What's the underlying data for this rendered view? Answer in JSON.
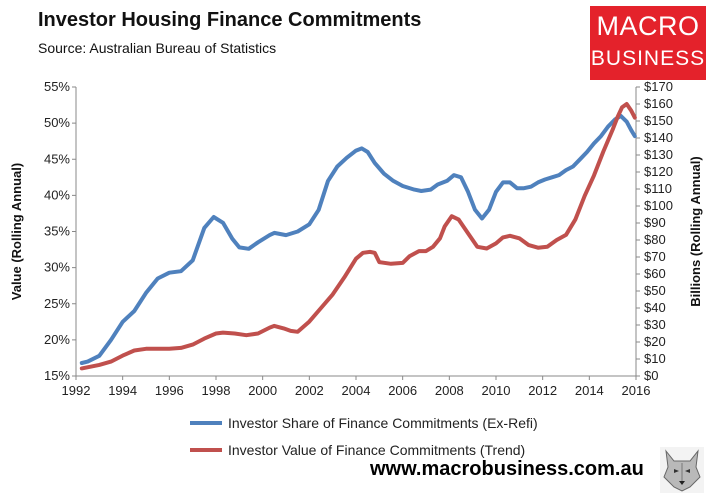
{
  "header": {
    "title": "Investor Housing Finance Commitments",
    "source": "Source: Australian Bureau of Statistics"
  },
  "logo": {
    "line1": "MACRO",
    "line2": "BUSINESS"
  },
  "footer": {
    "website": "www.macrobusiness.com.au"
  },
  "chart_data": {
    "type": "line",
    "title": "Investor Housing Finance Commitments",
    "xlabel": "",
    "ylabel": "Value (Rolling Annual)",
    "y2label": "Billions (Rolling Annual)",
    "xlim": [
      1992,
      2016
    ],
    "ylim": [
      15,
      55
    ],
    "y2lim": [
      0,
      170
    ],
    "x_ticks": [
      1992,
      1994,
      1996,
      1998,
      2000,
      2002,
      2004,
      2006,
      2008,
      2010,
      2012,
      2014,
      2016
    ],
    "x_tick_labels": [
      "1992",
      "1994",
      "1996",
      "1998",
      "2000",
      "2002",
      "2004",
      "2006",
      "2008",
      "2010",
      "2012",
      "2014",
      "2016"
    ],
    "y_ticks": [
      15,
      20,
      25,
      30,
      35,
      40,
      45,
      50,
      55
    ],
    "y_tick_labels": [
      "15%",
      "20%",
      "25%",
      "30%",
      "35%",
      "40%",
      "45%",
      "50%",
      "55%"
    ],
    "y2_ticks": [
      0,
      10,
      20,
      30,
      40,
      50,
      60,
      70,
      80,
      90,
      100,
      110,
      120,
      130,
      140,
      150,
      160,
      170
    ],
    "y2_tick_labels": [
      "$0",
      "$10",
      "$20",
      "$30",
      "$40",
      "$50",
      "$60",
      "$70",
      "$80",
      "$90",
      "$100",
      "$110",
      "$120",
      "$130",
      "$140",
      "$150",
      "$160",
      "$170"
    ],
    "grid": false,
    "legend_position": "bottom-center",
    "series": [
      {
        "name": "Investor Share of Finance Commitments (Ex-Refi)",
        "axis": "left",
        "color": "#4f81bd",
        "x": [
          1992.25,
          1992.5,
          1993.0,
          1993.5,
          1994.0,
          1994.5,
          1995.0,
          1995.5,
          1996.0,
          1996.5,
          1997.0,
          1997.5,
          1997.9,
          1998.3,
          1998.7,
          1999.0,
          1999.4,
          1999.8,
          2000.3,
          2000.5,
          2001.0,
          2001.5,
          2002.0,
          2002.4,
          2002.8,
          2003.2,
          2003.6,
          2004.0,
          2004.25,
          2004.5,
          2004.8,
          2005.2,
          2005.6,
          2006.0,
          2006.5,
          2006.8,
          2007.2,
          2007.5,
          2007.9,
          2008.2,
          2008.5,
          2008.8,
          2009.1,
          2009.4,
          2009.7,
          2010.0,
          2010.3,
          2010.6,
          2010.9,
          2011.2,
          2011.5,
          2011.8,
          2012.1,
          2012.4,
          2012.7,
          2013.0,
          2013.3,
          2013.6,
          2013.9,
          2014.2,
          2014.5,
          2014.8,
          2015.1,
          2015.35,
          2015.6,
          2015.8,
          2015.95
        ],
        "values": [
          16.8,
          17.0,
          17.8,
          20.0,
          22.5,
          24.0,
          26.5,
          28.5,
          29.3,
          29.5,
          31.0,
          35.5,
          37.0,
          36.2,
          34.0,
          32.8,
          32.6,
          33.5,
          34.5,
          34.8,
          34.5,
          35.0,
          36.0,
          38.0,
          42.0,
          44.0,
          45.2,
          46.2,
          46.5,
          46.0,
          44.5,
          43.0,
          42.0,
          41.3,
          40.8,
          40.6,
          40.8,
          41.5,
          42.0,
          42.8,
          42.5,
          40.5,
          38.0,
          36.8,
          38.0,
          40.5,
          41.8,
          41.8,
          41.0,
          41.0,
          41.2,
          41.8,
          42.2,
          42.5,
          42.8,
          43.5,
          44.0,
          45.0,
          46.0,
          47.2,
          48.2,
          49.5,
          50.5,
          51.0,
          50.2,
          49.0,
          48.2
        ]
      },
      {
        "name": "Investor Value of Finance Commitments (Trend)",
        "axis": "right",
        "color": "#c0504d",
        "x": [
          1992.25,
          1993.0,
          1993.5,
          1994.0,
          1994.5,
          1995.0,
          1995.5,
          1996.0,
          1996.5,
          1997.0,
          1997.5,
          1998.0,
          1998.3,
          1998.8,
          1999.3,
          1999.8,
          2000.3,
          2000.5,
          2000.9,
          2001.2,
          2001.5,
          2002.0,
          2002.5,
          2003.0,
          2003.5,
          2004.0,
          2004.3,
          2004.6,
          2004.8,
          2005.0,
          2005.5,
          2006.0,
          2006.3,
          2006.7,
          2007.0,
          2007.3,
          2007.6,
          2007.8,
          2008.1,
          2008.4,
          2008.8,
          2009.2,
          2009.6,
          2010.0,
          2010.3,
          2010.6,
          2011.0,
          2011.4,
          2011.8,
          2012.2,
          2012.6,
          2013.0,
          2013.4,
          2013.8,
          2014.2,
          2014.6,
          2015.0,
          2015.2,
          2015.4,
          2015.6,
          2015.8,
          2015.95
        ],
        "values": [
          4.5,
          6.5,
          8.5,
          12.0,
          15.0,
          16.0,
          16.0,
          16.0,
          16.5,
          18.5,
          22.0,
          25.0,
          25.5,
          25.0,
          24.0,
          25.0,
          28.5,
          29.5,
          28.0,
          26.5,
          26.0,
          32.0,
          40.0,
          48.0,
          58.0,
          69.0,
          72.5,
          73.0,
          72.5,
          67.0,
          66.0,
          66.5,
          70.5,
          73.5,
          73.5,
          76.0,
          81.0,
          88.0,
          94.0,
          92.0,
          84.0,
          76.0,
          75.0,
          78.0,
          81.5,
          82.5,
          81.0,
          77.0,
          75.5,
          76.0,
          80.0,
          83.0,
          92.0,
          106.0,
          118.0,
          132.0,
          145.0,
          152.0,
          158.0,
          160.0,
          156.0,
          152.0
        ]
      }
    ]
  }
}
